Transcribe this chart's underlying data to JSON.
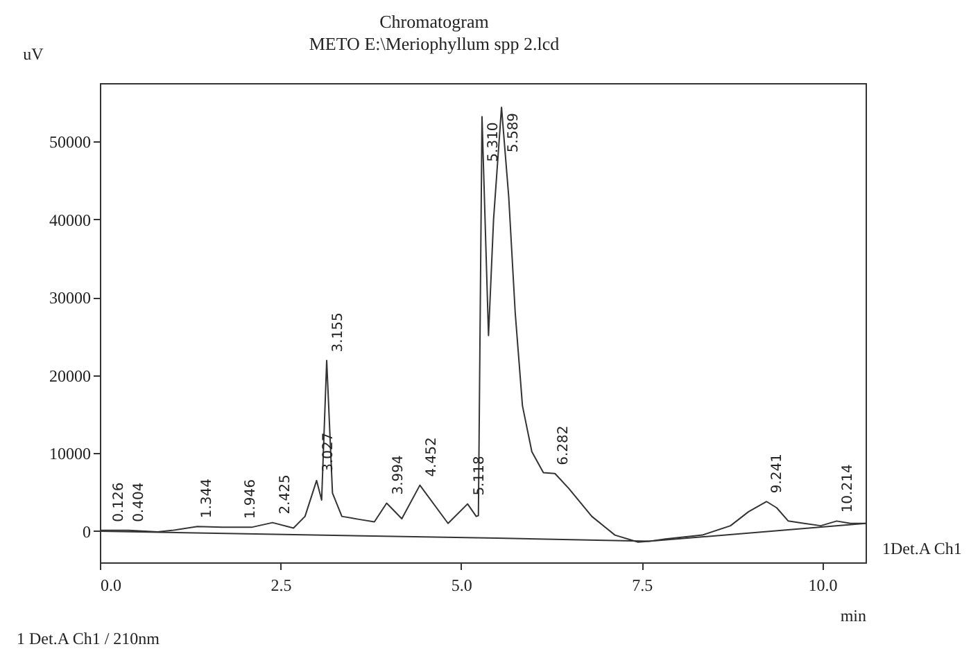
{
  "chart_data": {
    "type": "line",
    "title": "Chromatogram",
    "subtitle": "METO E:\\Meriophyllum spp 2.lcd",
    "xlabel": "min",
    "ylabel": "uV",
    "xlim": [
      0,
      10.6
    ],
    "xticks": [
      {
        "value": 0,
        "label": "0.0"
      },
      {
        "value": 2.5,
        "label": "2.5"
      },
      {
        "value": 5,
        "label": "5.0"
      },
      {
        "value": 7.5,
        "label": "7.5"
      },
      {
        "value": 10,
        "label": "10.0"
      }
    ],
    "ylim": [
      -4000,
      57500
    ],
    "yticks": [
      0,
      10000,
      20000,
      30000,
      40000,
      50000
    ],
    "marker": "none",
    "line_style": "solid",
    "series": [
      {
        "color": "#333333",
        "x": [
          0,
          0.4,
          0.8,
          1.0,
          1.35,
          1.7,
          2.1,
          2.39,
          2.68,
          2.84,
          3.0,
          3.07,
          3.14,
          3.22,
          3.35,
          3.6,
          3.8,
          3.97,
          4.18,
          4.43,
          4.82,
          5.09,
          5.21,
          5.24,
          5.29,
          5.38,
          5.45,
          5.56,
          5.66,
          5.75,
          5.85,
          5.98,
          6.14,
          6.3,
          6.49,
          6.81,
          7.13,
          7.45,
          7.6,
          7.83,
          8.34,
          8.73,
          8.98,
          9.23,
          9.37,
          9.53,
          9.75,
          9.98,
          10.2,
          10.39,
          10.6
        ],
        "values": [
          100,
          100,
          -100,
          100,
          600,
          500,
          500,
          1100,
          400,
          1900,
          6500,
          4000,
          21900,
          4900,
          1900,
          1500,
          1200,
          3600,
          1600,
          5900,
          1000,
          3500,
          1900,
          2000,
          53200,
          25100,
          40000,
          54400,
          42900,
          28000,
          16100,
          10200,
          7500,
          7400,
          5500,
          1900,
          -500,
          -1400,
          -1300,
          -1000,
          -500,
          700,
          2500,
          3800,
          3000,
          1300,
          1000,
          700,
          1300,
          1000,
          1000
        ]
      },
      {
        "color": "#333333",
        "x": [
          0,
          5.5,
          7.6,
          10.6
        ],
        "values": [
          0,
          -900,
          -1300,
          1000
        ]
      }
    ],
    "annotations": [
      {
        "text": "0.126",
        "x": 0.126,
        "y": 100
      },
      {
        "text": "0.404",
        "x": 0.404,
        "y": 100
      },
      {
        "text": "1.344",
        "x": 1.344,
        "y": 600
      },
      {
        "text": "1.946",
        "x": 1.946,
        "y": 500
      },
      {
        "text": "2.425",
        "x": 2.425,
        "y": 1100
      },
      {
        "text": "3.027",
        "x": 3.027,
        "y": 6500
      },
      {
        "text": "3.155",
        "x": 3.155,
        "y": 21900
      },
      {
        "text": "3.994",
        "x": 3.994,
        "y": 3600
      },
      {
        "text": "4.452",
        "x": 4.452,
        "y": 5900
      },
      {
        "text": "5.118",
        "x": 5.118,
        "y": 3500
      },
      {
        "text": "5.310",
        "x": 5.31,
        "y": 53200
      },
      {
        "text": "5.589",
        "x": 5.589,
        "y": 54400
      },
      {
        "text": "6.282",
        "x": 6.282,
        "y": 7400
      },
      {
        "text": "9.241",
        "x": 9.241,
        "y": 3800
      },
      {
        "text": "10.214",
        "x": 10.214,
        "y": 1300
      },
      {
        "text": "1Det.A Ch1",
        "x": 10.6,
        "y": 1000
      },
      "1   Det.A Ch1 / 210nm"
    ]
  }
}
